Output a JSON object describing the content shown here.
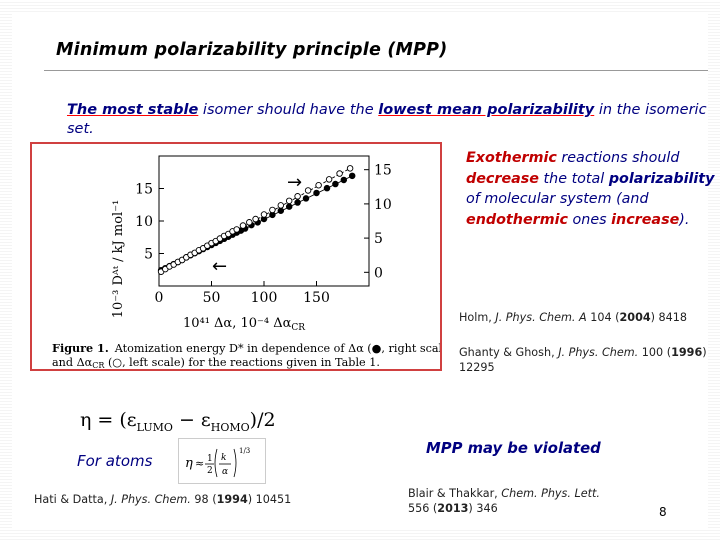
{
  "slide": {
    "title": "Minimum polarizability principle (MPP)",
    "lead": {
      "p1": "The most stable",
      "p2": " isomer should have the ",
      "p3": "lowest mean polarizability",
      "p4": " in the isomeric set."
    },
    "right": {
      "w1": "Exothermic",
      "w2": " reactions should ",
      "w3": "decrease",
      "w4": " the total ",
      "w5": "polarizability",
      "w6": " of molecular system (and ",
      "w7": "endothermic",
      "w8": " ones ",
      "w9": "increase",
      "w10": ")."
    },
    "figure": {
      "caption_label": "Figure 1.",
      "caption_line1": "Atomization energy D* in dependence of Δα (●, right scale)",
      "caption_line2": "and Δα",
      "caption_line2_sub": "CR",
      "caption_line2_rest": " (○, left scale) for the reactions given in Table 1.",
      "ylabel": "10⁻³ Dᴬᵗ / kJ mol⁻¹",
      "xlabel_a": "10⁴¹ Δα, 10⁻⁴ Δα",
      "xlabel_sub": "CR",
      "left_ticks": [
        "15",
        "10",
        "5"
      ],
      "right_ticks": [
        "15",
        "10",
        "5",
        "0"
      ],
      "x_ticks": [
        "0",
        "50",
        "100",
        "150"
      ]
    },
    "ref1": {
      "authors": "Holm, ",
      "journal": "J. Phys. Chem. A",
      "vol": " 104 (",
      "year": "2004",
      "rest": ") 8418"
    },
    "ref2": {
      "authors": "Ghanty & Ghosh, ",
      "journal": "J. Phys. Chem.",
      "vol": " 100 (",
      "year": "1996",
      "rest": ") 12295"
    },
    "eta": {
      "lhs": "η = (ε",
      "sub1": "LUMO",
      "mid": " − ε",
      "sub2": "HOMO",
      "rhs": ")/2"
    },
    "for_atoms": "For atoms",
    "mpp_violated": "MPP may be violated",
    "ref3": {
      "authors": "Hati & Datta, ",
      "journal": "J. Phys. Chem.",
      "vol": " 98 (",
      "year": "1994",
      "rest": ") 10451"
    },
    "ref4": {
      "authors": "Blair & Thakkar, ",
      "journal": "Chem. Phys. Lett.",
      "vol": "556 (",
      "year": "2013",
      "rest": ") 346"
    },
    "page_number": "8"
  },
  "chart_data": {
    "type": "scatter",
    "xlabel": "10⁴¹ Δα, 10⁻⁴ Δα_CR",
    "ylabel": "10⁻³ Dᴬᵗ / kJ mol⁻¹",
    "xlim": [
      0,
      200
    ],
    "left_ylim": [
      0,
      20
    ],
    "right_ylim": [
      -2,
      17
    ],
    "series": [
      {
        "name": "Δα (●, right scale)",
        "axis": "right",
        "marker": "filled",
        "x": [
          2,
          6,
          10,
          14,
          18,
          22,
          26,
          30,
          34,
          38,
          42,
          46,
          50,
          54,
          58,
          62,
          66,
          70,
          74,
          78,
          82,
          88,
          94,
          100,
          108,
          116,
          124,
          132,
          140,
          150,
          160,
          168,
          176,
          184
        ],
        "y": [
          0.3,
          0.6,
          0.9,
          1.2,
          1.5,
          1.8,
          2.2,
          2.5,
          2.8,
          3.1,
          3.4,
          3.7,
          4.0,
          4.3,
          4.6,
          4.9,
          5.2,
          5.5,
          5.8,
          6.1,
          6.4,
          6.9,
          7.3,
          7.8,
          8.4,
          9.0,
          9.6,
          10.2,
          10.8,
          11.6,
          12.3,
          12.9,
          13.5,
          14.1
        ]
      },
      {
        "name": "Δα_CR (○, left scale)",
        "axis": "left",
        "marker": "open",
        "x": [
          2,
          6,
          10,
          14,
          18,
          22,
          26,
          30,
          34,
          38,
          42,
          46,
          50,
          54,
          58,
          62,
          66,
          70,
          74,
          80,
          86,
          92,
          100,
          108,
          116,
          124,
          132,
          142,
          152,
          162,
          172,
          182
        ],
        "y": [
          2.2,
          2.6,
          3.0,
          3.3,
          3.7,
          4.0,
          4.4,
          4.8,
          5.1,
          5.5,
          5.8,
          6.2,
          6.6,
          6.9,
          7.3,
          7.7,
          8.0,
          8.4,
          8.7,
          9.3,
          9.8,
          10.3,
          11.0,
          11.7,
          12.4,
          13.1,
          13.8,
          14.7,
          15.5,
          16.4,
          17.3,
          18.1
        ]
      }
    ],
    "annotations": [
      "→",
      "←"
    ]
  }
}
